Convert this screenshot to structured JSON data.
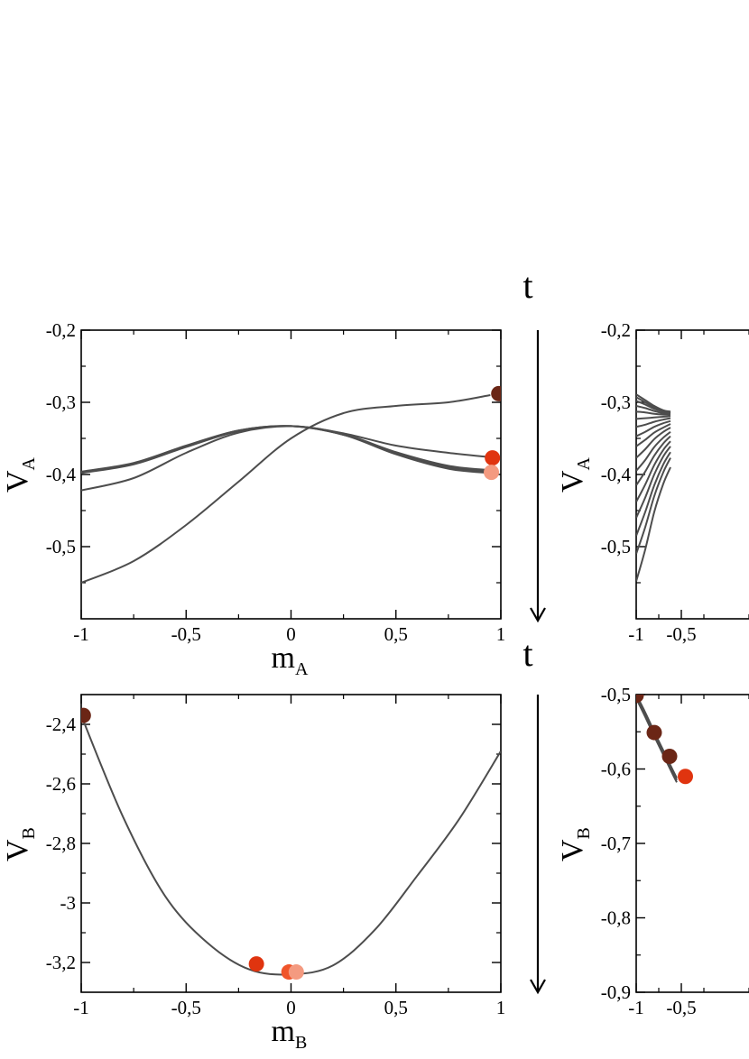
{
  "colors": {
    "curve": "#4d4d4d",
    "marker_dark": "#6b2616",
    "marker_red": "#e0340f",
    "marker_orange": "#f0552a",
    "marker_salmon": "#f49a80"
  },
  "arrows": [
    {
      "label": "t"
    },
    {
      "label": "t"
    }
  ],
  "chart_data": [
    {
      "type": "line",
      "panel": "top-left",
      "xlabel_main": "m",
      "xlabel_sub": "A",
      "ylabel_main": "V",
      "ylabel_sub": "A",
      "xlim": [
        -1,
        1
      ],
      "ylim": [
        -0.6,
        -0.2
      ],
      "xticks": [
        "-1",
        "-0,5",
        "0",
        "0,5",
        "1"
      ],
      "xtick_values": [
        -1,
        -0.5,
        0,
        0.5,
        1
      ],
      "yticks": [
        "-0,2",
        "-0,3",
        "-0,4",
        "-0,5"
      ],
      "ytick_values": [
        -0.2,
        -0.3,
        -0.4,
        -0.5
      ],
      "series": [
        {
          "x": [
            -1,
            -0.75,
            -0.5,
            -0.25,
            0,
            0.25,
            0.5,
            0.75,
            0.95
          ],
          "y": [
            -0.55,
            -0.52,
            -0.47,
            -0.41,
            -0.35,
            -0.315,
            -0.305,
            -0.3,
            -0.29
          ]
        },
        {
          "x": [
            -1,
            -0.75,
            -0.5,
            -0.25,
            0,
            0.25,
            0.5,
            0.75,
            0.95
          ],
          "y": [
            -0.422,
            -0.405,
            -0.37,
            -0.342,
            -0.333,
            -0.343,
            -0.36,
            -0.37,
            -0.376
          ]
        },
        {
          "x": [
            -1,
            -0.75,
            -0.5,
            -0.25,
            0,
            0.25,
            0.5,
            0.75,
            0.95
          ],
          "y": [
            -0.398,
            -0.386,
            -0.362,
            -0.34,
            -0.333,
            -0.345,
            -0.372,
            -0.392,
            -0.398
          ]
        },
        {
          "x": [
            -1,
            -0.75,
            -0.5,
            -0.25,
            0,
            0.25,
            0.5,
            0.75,
            0.95
          ],
          "y": [
            -0.397,
            -0.385,
            -0.361,
            -0.339,
            -0.333,
            -0.345,
            -0.37,
            -0.39,
            -0.396
          ]
        },
        {
          "x": [
            -1,
            -0.75,
            -0.5,
            -0.25,
            0,
            0.25,
            0.5,
            0.75,
            0.95
          ],
          "y": [
            -0.396,
            -0.384,
            -0.36,
            -0.339,
            -0.333,
            -0.344,
            -0.369,
            -0.388,
            -0.394
          ]
        }
      ],
      "markers": [
        {
          "x": 0.99,
          "y": -0.288,
          "color": "marker_dark"
        },
        {
          "x": 0.96,
          "y": -0.377,
          "color": "marker_red"
        },
        {
          "x": 0.955,
          "y": -0.397,
          "color": "marker_salmon"
        }
      ]
    },
    {
      "type": "line",
      "panel": "bottom-left",
      "xlabel_main": "m",
      "xlabel_sub": "B",
      "ylabel_main": "V",
      "ylabel_sub": "B",
      "xlim": [
        -1,
        1
      ],
      "ylim": [
        -3.3,
        -2.3
      ],
      "xticks": [
        "-1",
        "-0,5",
        "0",
        "0,5",
        "1"
      ],
      "xtick_values": [
        -1,
        -0.5,
        0,
        0.5,
        1
      ],
      "yticks": [
        "-2,4",
        "-2,6",
        "-2,8",
        "-3",
        "-3,2"
      ],
      "ytick_values": [
        -2.4,
        -2.6,
        -2.8,
        -3.0,
        -3.2
      ],
      "series": [
        {
          "x": [
            -1,
            -0.8,
            -0.6,
            -0.4,
            -0.2,
            0,
            0.2,
            0.4,
            0.6,
            0.8,
            1
          ],
          "y": [
            -2.37,
            -2.712,
            -2.977,
            -3.133,
            -3.223,
            -3.24,
            -3.21,
            -3.09,
            -2.91,
            -2.72,
            -2.49
          ]
        }
      ],
      "markers": [
        {
          "x": -0.99,
          "y": -2.37,
          "color": "marker_dark"
        },
        {
          "x": -0.165,
          "y": -3.205,
          "color": "marker_red"
        },
        {
          "x": -0.01,
          "y": -3.232,
          "color": "marker_orange"
        },
        {
          "x": 0.025,
          "y": -3.232,
          "color": "marker_salmon"
        }
      ]
    },
    {
      "type": "line",
      "panel": "top-right",
      "xlabel_main": "",
      "xlabel_sub": "",
      "ylabel_main": "V",
      "ylabel_sub": "A",
      "xlim": [
        -1,
        1
      ],
      "ylim": [
        -0.6,
        -0.2
      ],
      "xticks": [
        "-1",
        "-0,5"
      ],
      "xtick_values": [
        -1,
        -0.5
      ],
      "yticks": [
        "-0,2",
        "-0,3",
        "-0,4",
        "-0,5"
      ],
      "ytick_values": [
        -0.2,
        -0.3,
        -0.4,
        -0.5
      ],
      "series": [
        {
          "x": [
            -1,
            -0.9,
            -0.8,
            -0.7,
            -0.62
          ],
          "y": [
            -0.289,
            -0.297,
            -0.305,
            -0.311,
            -0.313
          ]
        },
        {
          "x": [
            -1,
            -0.9,
            -0.8,
            -0.7,
            -0.62
          ],
          "y": [
            -0.293,
            -0.3,
            -0.307,
            -0.312,
            -0.314
          ]
        },
        {
          "x": [
            -1,
            -0.9,
            -0.8,
            -0.7,
            -0.62
          ],
          "y": [
            -0.298,
            -0.303,
            -0.309,
            -0.313,
            -0.315
          ]
        },
        {
          "x": [
            -1,
            -0.9,
            -0.8,
            -0.7,
            -0.62
          ],
          "y": [
            -0.305,
            -0.308,
            -0.312,
            -0.315,
            -0.316
          ]
        },
        {
          "x": [
            -1,
            -0.9,
            -0.8,
            -0.7,
            -0.62
          ],
          "y": [
            -0.313,
            -0.314,
            -0.316,
            -0.317,
            -0.317
          ]
        },
        {
          "x": [
            -1,
            -0.9,
            -0.8,
            -0.7,
            -0.62
          ],
          "y": [
            -0.323,
            -0.322,
            -0.321,
            -0.32,
            -0.319
          ]
        },
        {
          "x": [
            -1,
            -0.9,
            -0.8,
            -0.7,
            -0.62
          ],
          "y": [
            -0.334,
            -0.331,
            -0.327,
            -0.324,
            -0.322
          ]
        },
        {
          "x": [
            -1,
            -0.9,
            -0.8,
            -0.7,
            -0.62
          ],
          "y": [
            -0.347,
            -0.341,
            -0.334,
            -0.329,
            -0.326
          ]
        },
        {
          "x": [
            -1,
            -0.9,
            -0.8,
            -0.7,
            -0.62
          ],
          "y": [
            -0.361,
            -0.352,
            -0.342,
            -0.335,
            -0.33
          ]
        },
        {
          "x": [
            -1,
            -0.9,
            -0.8,
            -0.7,
            -0.62
          ],
          "y": [
            -0.377,
            -0.365,
            -0.351,
            -0.341,
            -0.335
          ]
        },
        {
          "x": [
            -1,
            -0.9,
            -0.8,
            -0.7,
            -0.62
          ],
          "y": [
            -0.395,
            -0.38,
            -0.362,
            -0.349,
            -0.341
          ]
        },
        {
          "x": [
            -1,
            -0.9,
            -0.8,
            -0.7,
            -0.62
          ],
          "y": [
            -0.415,
            -0.396,
            -0.374,
            -0.357,
            -0.347
          ]
        },
        {
          "x": [
            -1,
            -0.9,
            -0.8,
            -0.7,
            -0.62
          ],
          "y": [
            -0.438,
            -0.414,
            -0.387,
            -0.366,
            -0.354
          ]
        },
        {
          "x": [
            -1,
            -0.9,
            -0.8,
            -0.7,
            -0.62
          ],
          "y": [
            -0.46,
            -0.432,
            -0.4,
            -0.375,
            -0.361
          ]
        },
        {
          "x": [
            -1,
            -0.9,
            -0.8,
            -0.7,
            -0.62
          ],
          "y": [
            -0.485,
            -0.452,
            -0.415,
            -0.386,
            -0.369
          ]
        },
        {
          "x": [
            -1,
            -0.9,
            -0.8,
            -0.7,
            -0.62
          ],
          "y": [
            -0.51,
            -0.473,
            -0.43,
            -0.397,
            -0.377
          ]
        },
        {
          "x": [
            -1,
            -0.9,
            -0.8,
            -0.7,
            -0.62
          ],
          "y": [
            -0.548,
            -0.504,
            -0.452,
            -0.413,
            -0.39
          ]
        }
      ],
      "markers": []
    },
    {
      "type": "line",
      "panel": "bottom-right",
      "xlabel_main": "",
      "xlabel_sub": "",
      "ylabel_main": "V",
      "ylabel_sub": "B",
      "xlim": [
        -1,
        1
      ],
      "ylim": [
        -0.9,
        -0.5
      ],
      "xticks": [
        "-1",
        "-0,5"
      ],
      "xtick_values": [
        -1,
        -0.5
      ],
      "yticks": [
        "-0,5",
        "-0,6",
        "-0,7",
        "-0,8",
        "-0,9"
      ],
      "ytick_values": [
        -0.5,
        -0.6,
        -0.7,
        -0.8,
        -0.9
      ],
      "series": [
        {
          "x": [
            -1,
            -0.9,
            -0.8,
            -0.7,
            -0.6,
            -0.55
          ],
          "y": [
            -0.5,
            -0.524,
            -0.55,
            -0.575,
            -0.6,
            -0.612
          ]
        },
        {
          "x": [
            -1,
            -0.9,
            -0.8,
            -0.7,
            -0.6,
            -0.55
          ],
          "y": [
            -0.502,
            -0.527,
            -0.553,
            -0.578,
            -0.603,
            -0.615
          ]
        },
        {
          "x": [
            -1,
            -0.9,
            -0.8,
            -0.7,
            -0.6,
            -0.55
          ],
          "y": [
            -0.505,
            -0.53,
            -0.556,
            -0.581,
            -0.606,
            -0.618
          ]
        }
      ],
      "markers": [
        {
          "x": -1.0,
          "y": -0.501,
          "color": "marker_dark"
        },
        {
          "x": -0.8,
          "y": -0.551,
          "color": "marker_dark"
        },
        {
          "x": -0.63,
          "y": -0.583,
          "color": "marker_dark"
        },
        {
          "x": -0.455,
          "y": -0.61,
          "color": "marker_red"
        }
      ]
    }
  ]
}
